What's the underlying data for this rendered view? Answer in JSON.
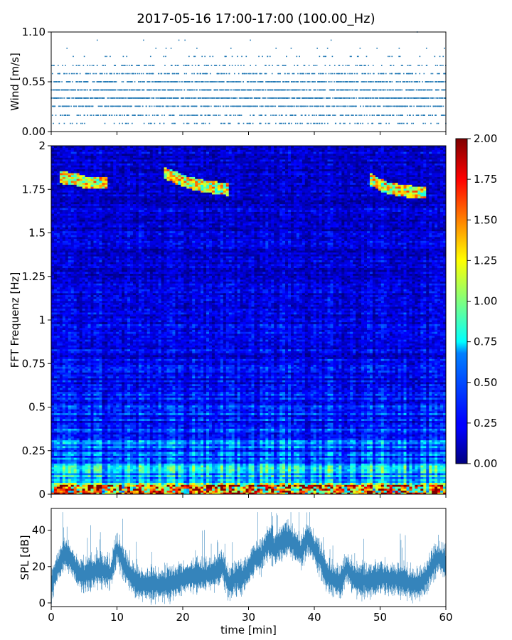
{
  "title": "2017-05-16 17:00-17:00 (100.00_Hz)",
  "chart_data": [
    {
      "type": "scatter",
      "panel": "wind",
      "ylabel": "Wind [m/s]",
      "xlim": [
        0,
        60
      ],
      "ylim": [
        0,
        1.1
      ],
      "yticks": [
        0.0,
        0.55,
        1.1
      ],
      "ytick_labels": [
        "0.00",
        "0.55",
        "1.10"
      ],
      "color": "#1f77b4",
      "levels": [
        0.09,
        0.18,
        0.28,
        0.37,
        0.46,
        0.55,
        0.64,
        0.73,
        0.83,
        0.92,
        1.01,
        1.1
      ],
      "level_density": [
        0.1,
        0.22,
        0.42,
        0.62,
        0.55,
        0.38,
        0.22,
        0.12,
        0.05,
        0.015,
        0.005,
        0.001
      ]
    },
    {
      "type": "heatmap",
      "panel": "spectrogram",
      "ylabel": "FFT Frequenz [Hz]",
      "xlim": [
        0,
        60
      ],
      "ylim": [
        0,
        2
      ],
      "yticks": [
        0,
        0.25,
        0.5,
        0.75,
        1,
        1.25,
        1.5,
        1.75,
        2
      ],
      "ytick_labels": [
        "0",
        "0.25",
        "0.5",
        "0.75",
        "1",
        "1.25",
        "1.5",
        "1.75",
        "2"
      ],
      "colormap": "jet",
      "vmin": 0,
      "vmax": 2,
      "colorbar_ticks": [
        0.0,
        0.25,
        0.5,
        0.75,
        1.0,
        1.25,
        1.5,
        1.75,
        2.0
      ],
      "colorbar_labels": [
        "0.00",
        "0.25",
        "0.50",
        "0.75",
        "1.00",
        "1.25",
        "1.50",
        "1.75",
        "2.00"
      ],
      "tonal_tracks": [
        {
          "t": [
            1.5,
            3.5,
            5.5,
            8.5
          ],
          "f": [
            1.82,
            1.81,
            1.79,
            1.79
          ]
        },
        {
          "t": [
            17,
            20,
            23,
            27
          ],
          "f": [
            1.85,
            1.8,
            1.77,
            1.75
          ]
        },
        {
          "t": [
            48.5,
            51,
            54,
            57
          ],
          "f": [
            1.81,
            1.76,
            1.74,
            1.73
          ]
        }
      ]
    },
    {
      "type": "line",
      "panel": "spl",
      "ylabel": "SPL [dB]",
      "xlabel": "time [min]",
      "xlim": [
        0,
        60
      ],
      "ylim": [
        -2,
        52
      ],
      "yticks": [
        0,
        20,
        40
      ],
      "ytick_labels": [
        "0",
        "20",
        "40"
      ],
      "xticks": [
        0,
        10,
        20,
        30,
        40,
        50,
        60
      ],
      "xtick_labels": [
        "0",
        "10",
        "20",
        "30",
        "40",
        "50",
        "60"
      ],
      "color": "#1f77b4",
      "trend": {
        "t": [
          0,
          1,
          2,
          3,
          4,
          5,
          6,
          7,
          8,
          9,
          10,
          11,
          12,
          13,
          15,
          17,
          19,
          21,
          23,
          25,
          26,
          27,
          28,
          29,
          30,
          31,
          32,
          33,
          34,
          35,
          36,
          37,
          38,
          39,
          40,
          41,
          42,
          43,
          44,
          45,
          46,
          48,
          50,
          52,
          54,
          55,
          56,
          57,
          58,
          59,
          60
        ],
        "y": [
          10,
          20,
          27,
          24,
          17,
          15,
          17,
          18,
          18,
          16,
          30,
          22,
          15,
          11,
          10,
          10,
          12,
          15,
          15,
          17,
          21,
          10,
          14,
          14,
          18,
          25,
          26,
          34,
          30,
          34,
          36,
          32,
          28,
          36,
          30,
          23,
          15,
          13,
          11,
          20,
          13,
          12,
          14,
          13,
          12,
          10,
          11,
          14,
          21,
          25,
          22
        ]
      }
    }
  ]
}
